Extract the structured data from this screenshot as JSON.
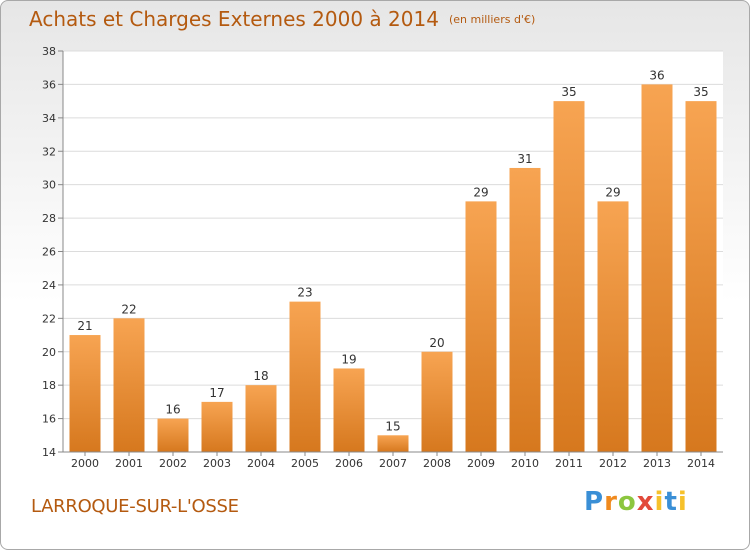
{
  "title": "Achats et Charges Externes 2000 à 2014",
  "unit_note": "(en milliers d'€)",
  "town": "LARROQUE-SUR-L'OSSE",
  "logo": {
    "p": "P",
    "r": "r",
    "o": "o",
    "x": "x",
    "i": "i",
    "t": "t",
    "i2": "i"
  },
  "colors": {
    "bar_light": "#f7a452",
    "bar_dark": "#d6781e",
    "title": "#b45a10"
  },
  "chart_data": {
    "type": "bar",
    "categories": [
      "2000",
      "2001",
      "2002",
      "2003",
      "2004",
      "2005",
      "2006",
      "2007",
      "2008",
      "2009",
      "2010",
      "2011",
      "2012",
      "2013",
      "2014"
    ],
    "values": [
      21,
      22,
      16,
      17,
      18,
      23,
      19,
      15,
      20,
      29,
      31,
      35,
      29,
      36,
      35
    ],
    "ylim": [
      14,
      38
    ],
    "yticks": [
      14,
      16,
      18,
      20,
      22,
      24,
      26,
      28,
      30,
      32,
      34,
      36,
      38
    ],
    "grid": true
  }
}
